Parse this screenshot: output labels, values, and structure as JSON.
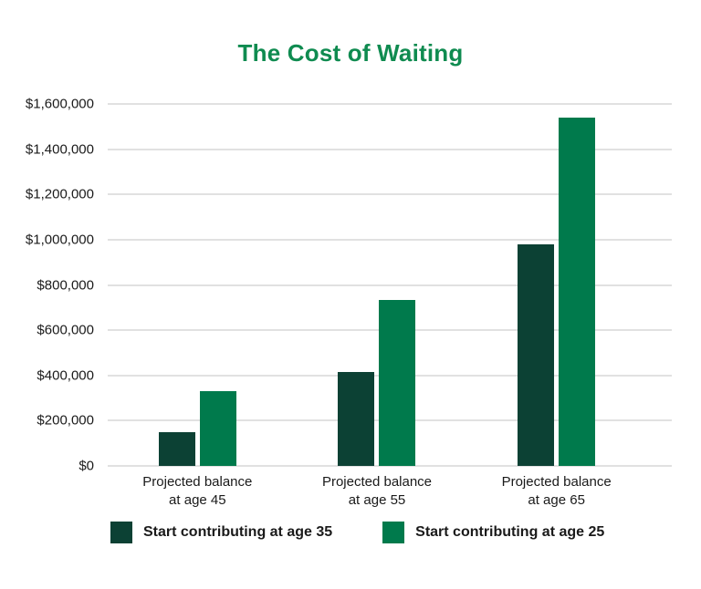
{
  "chart_data": {
    "type": "bar",
    "title": "The Cost of Waiting",
    "title_color": "#0f8b50",
    "background": "#ffffff",
    "text_color": "#1a1a1a",
    "grid": true,
    "grid_color": "#e1e1e1",
    "legend_position": "bottom",
    "categories": [
      "Projected balance\nat age 45",
      "Projected balance\nat age 55",
      "Projected balance\nat age 65"
    ],
    "series": [
      {
        "name": "Start contributing at age 35",
        "color": "#0c4134",
        "values": [
          150000,
          415000,
          980000
        ]
      },
      {
        "name": "Start contributing at age 25",
        "color": "#007a4c",
        "values": [
          330000,
          735000,
          1540000
        ]
      }
    ],
    "ylim": [
      0,
      1600000
    ],
    "ytick_step": 200000,
    "ytick_labels": [
      "$0",
      "$200,000",
      "$400,000",
      "$600,000",
      "$800,000",
      "$1,000,000",
      "$1,200,000",
      "$1,400,000",
      "$1,600,000"
    ]
  }
}
